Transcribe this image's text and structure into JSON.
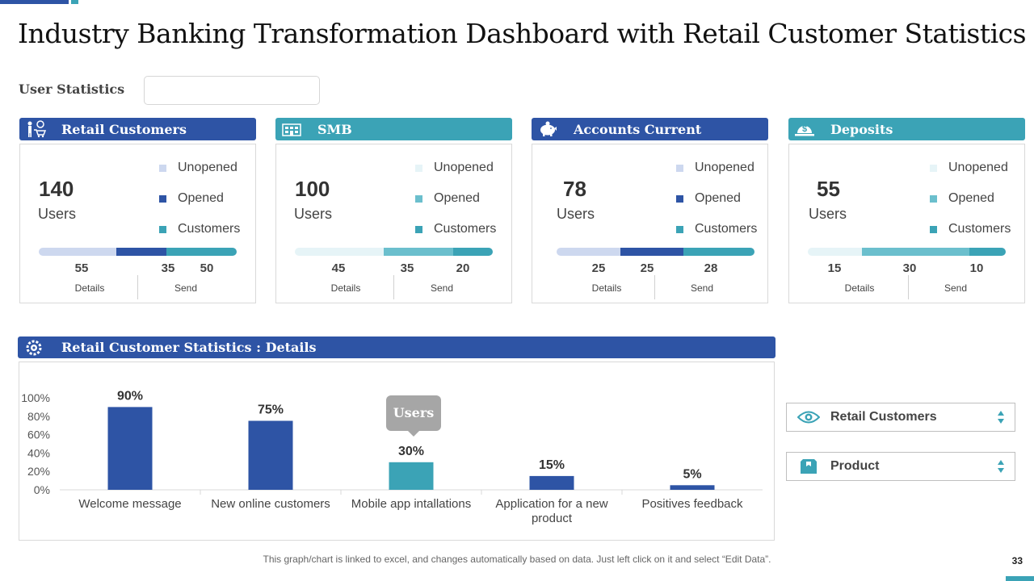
{
  "title": "Industry Banking Transformation Dashboard with Retail Customer Statistics",
  "user_statistics": {
    "label": "User Statistics",
    "input_value": ""
  },
  "cards": [
    {
      "title": "Retail Customers",
      "icon": "customer-shopping-icon",
      "count": "140",
      "unit": "Users",
      "legend": [
        "Unopened",
        "Opened",
        "Customers"
      ],
      "legend_colors": [
        "#cdd8ef",
        "#2e54a5",
        "#3ba3b6"
      ],
      "values": [
        "55",
        "35",
        "50"
      ],
      "sub_labels": [
        "Details",
        "Send"
      ]
    },
    {
      "title": "SMB",
      "icon": "building-icon",
      "count": "100",
      "unit": "Users",
      "legend": [
        "Unopened",
        "Opened",
        "Customers"
      ],
      "legend_colors": [
        "#e6f4f7",
        "#6bbfcd",
        "#3ba3b6"
      ],
      "values": [
        "45",
        "35",
        "20"
      ],
      "sub_labels": [
        "Details",
        "Send"
      ]
    },
    {
      "title": "Accounts Current",
      "icon": "piggy-bank-icon",
      "count": "78",
      "unit": "Users",
      "legend": [
        "Unopened",
        "Opened",
        "Customers"
      ],
      "legend_colors": [
        "#cdd8ef",
        "#2e54a5",
        "#3ba3b6"
      ],
      "values": [
        "25",
        "25",
        "28"
      ],
      "sub_labels": [
        "Details",
        "Send"
      ]
    },
    {
      "title": "Deposits",
      "icon": "money-deposit-icon",
      "count": "55",
      "unit": "Users",
      "legend": [
        "Unopened",
        "Opened",
        "Customers"
      ],
      "legend_colors": [
        "#e6f4f7",
        "#6bbfcd",
        "#3ba3b6"
      ],
      "values": [
        "15",
        "30",
        "10"
      ],
      "sub_labels": [
        "Details",
        "Send"
      ]
    }
  ],
  "details": {
    "title": "Retail Customer Statistics : Details",
    "callout": "Users"
  },
  "chart_data": {
    "type": "bar",
    "title": "Retail Customer Statistics : Details",
    "categories": [
      "Welcome message",
      "New online customers",
      "Mobile app intallations",
      "Application for a new product",
      "Positives feedback"
    ],
    "values": [
      90,
      75,
      30,
      15,
      5
    ],
    "data_labels": [
      "90%",
      "75%",
      "30%",
      "15%",
      "5%"
    ],
    "highlight_index": 2,
    "ylim": [
      0,
      100
    ],
    "yticks": [
      "0%",
      "20%",
      "40%",
      "60%",
      "80%",
      "100%"
    ],
    "colors": {
      "bar": "#2e54a5",
      "highlight": "#3ba3b6"
    }
  },
  "selectors": [
    {
      "label": "Retail Customers",
      "icon": "eye-icon"
    },
    {
      "label": "Product",
      "icon": "product-box-icon"
    }
  ],
  "colors": {
    "primary": "#2e54a5",
    "accent": "#3ba3b6"
  },
  "footnote": "This graph/chart is linked to excel, and changes automatically based on data. Just left click on it and select “Edit Data”.",
  "page_number": "33"
}
